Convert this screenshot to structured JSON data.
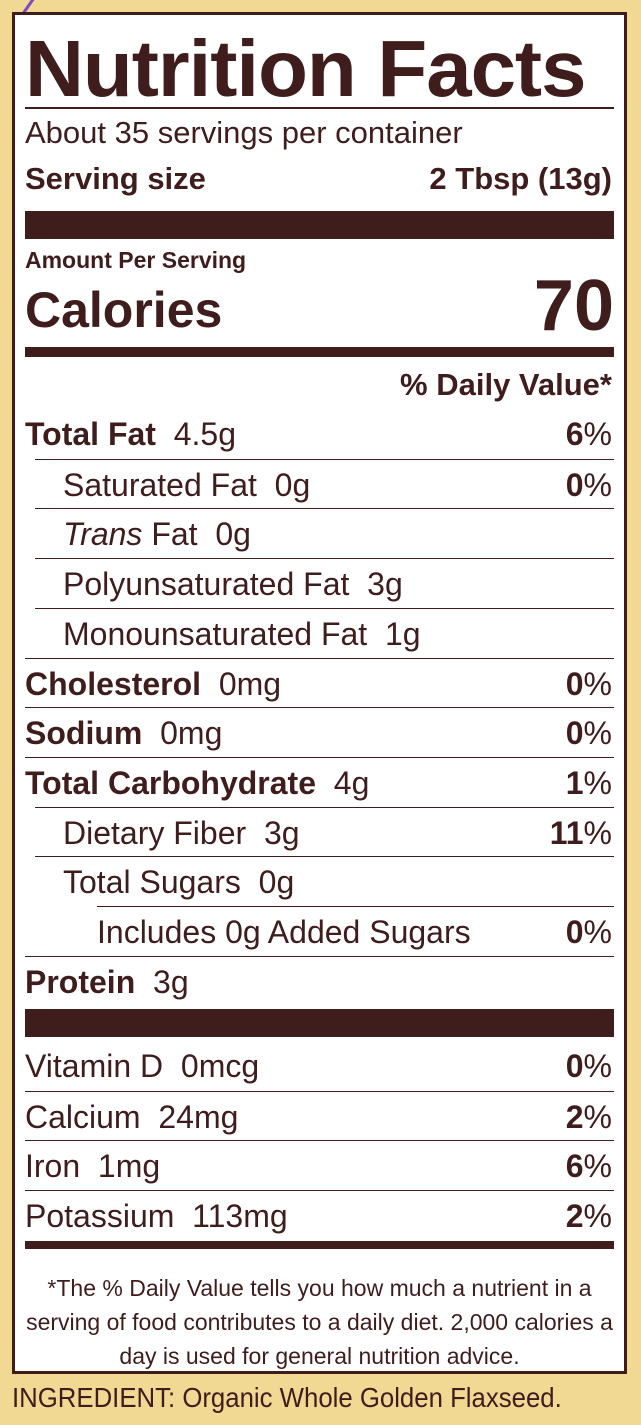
{
  "title": "Nutrition Facts",
  "servings": "About 35 servings per container",
  "serving_size_label": "Serving size",
  "serving_size_value": "2 Tbsp (13g)",
  "amount_per_serving": "Amount Per Serving",
  "calories_label": "Calories",
  "calories_value": "70",
  "dv_header": "% Daily Value*",
  "nutrients": [
    {
      "name": "Total Fat",
      "amount": "4.5g",
      "dv": "6",
      "bold": true,
      "indent": 0
    },
    {
      "name": "Saturated Fat",
      "amount": "0g",
      "dv": "0",
      "indent": 1
    },
    {
      "name": "Trans",
      "name_suffix": " Fat",
      "amount": "0g",
      "dv": "",
      "indent": 1
    },
    {
      "name": "Polyunsaturated Fat",
      "amount": "3g",
      "dv": "",
      "indent": 1
    },
    {
      "name": "Monounsaturated Fat",
      "amount": "1g",
      "dv": "",
      "indent": 1
    },
    {
      "name": "Cholesterol",
      "amount": "0mg",
      "dv": "0",
      "bold": true,
      "indent": 0
    },
    {
      "name": "Sodium",
      "amount": "0mg",
      "dv": "0",
      "bold": true,
      "indent": 0
    },
    {
      "name": "Total Carbohydrate",
      "amount": "4g",
      "dv": "1",
      "bold": true,
      "indent": 0
    },
    {
      "name": "Dietary Fiber",
      "amount": "3g",
      "dv": "11",
      "indent": 1
    },
    {
      "name": "Total Sugars",
      "amount": "0g",
      "dv": "",
      "indent": 1
    },
    {
      "name": "Includes 0g Added Sugars",
      "amount": "",
      "dv": "0",
      "indent": 2
    },
    {
      "name": "Protein",
      "amount": "3g",
      "dv": "",
      "bold": true,
      "indent": 0
    }
  ],
  "vitamins": [
    {
      "name": "Vitamin D",
      "amount": "0mcg",
      "dv": "0"
    },
    {
      "name": "Calcium",
      "amount": "24mg",
      "dv": "2"
    },
    {
      "name": "Iron",
      "amount": "1mg",
      "dv": "6"
    },
    {
      "name": "Potassium",
      "amount": "113mg",
      "dv": "2"
    }
  ],
  "percent_sign": "%",
  "footnote": "*The % Daily Value tells you how much a nutrient in a serving of food contributes to a daily diet. 2,000 calories a day is used for general nutrition advice.",
  "ingredient": "INGREDIENT: Organic Whole Golden Flaxseed.",
  "colors": {
    "background": "#f1d893",
    "ink": "#3f1d1d",
    "panel": "#ffffff"
  }
}
